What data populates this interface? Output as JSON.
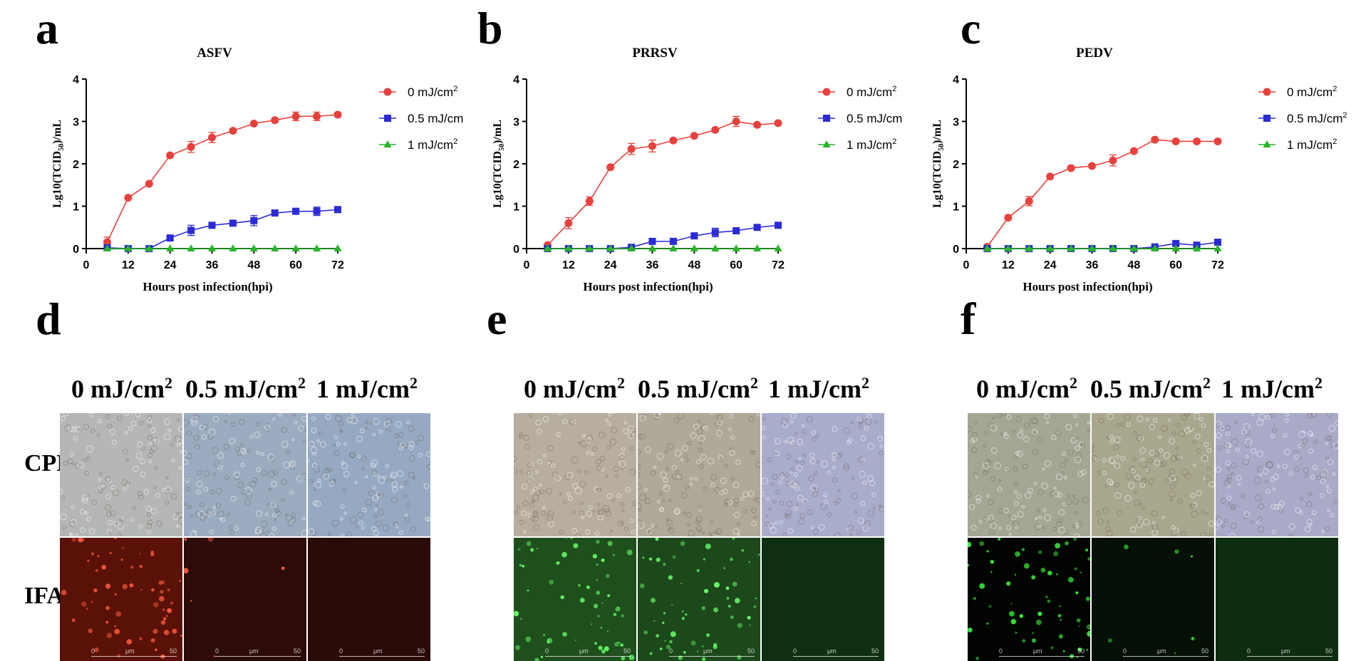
{
  "panel_letters": [
    "a",
    "b",
    "c",
    "d",
    "e",
    "f"
  ],
  "chart_data": [
    {
      "type": "line",
      "title": "ASFV",
      "xlabel": "Hours post infection(hpi)",
      "ylabel": "Lg10(TCID50)/mL",
      "xlim": [
        0,
        72
      ],
      "ylim": [
        0,
        4
      ],
      "xticks": [
        0,
        12,
        24,
        36,
        48,
        60,
        72
      ],
      "yticks": [
        0,
        1,
        2,
        3,
        4
      ],
      "legend_position": "right",
      "x": [
        6,
        12,
        18,
        24,
        30,
        36,
        42,
        48,
        54,
        60,
        66,
        72
      ],
      "series": [
        {
          "name": "0 mJ/cm2",
          "color": "#e8413c",
          "marker": "circle",
          "values": [
            0.15,
            1.2,
            1.53,
            2.2,
            2.4,
            2.62,
            2.78,
            2.95,
            3.03,
            3.12,
            3.12,
            3.16
          ],
          "errors": [
            0.12,
            0.03,
            0.03,
            0.03,
            0.13,
            0.12,
            0.04,
            0.04,
            0.04,
            0.1,
            0.1,
            0.05
          ]
        },
        {
          "name": "0.5 mJ/cm",
          "color": "#2b2bd6",
          "marker": "square",
          "values": [
            0.02,
            0.0,
            0.0,
            0.25,
            0.43,
            0.55,
            0.6,
            0.66,
            0.84,
            0.88,
            0.88,
            0.92
          ],
          "errors": [
            0.03,
            0.02,
            0.02,
            0.05,
            0.12,
            0.05,
            0.05,
            0.12,
            0.06,
            0.06,
            0.1,
            0.06
          ]
        },
        {
          "name": "1 mJ/cm2",
          "color": "#27b427",
          "marker": "triangle",
          "values": [
            0,
            0,
            0,
            0,
            0,
            0,
            0,
            0,
            0,
            0,
            0,
            0
          ],
          "errors": [
            0,
            0,
            0,
            0,
            0,
            0,
            0,
            0,
            0,
            0,
            0,
            0
          ]
        }
      ]
    },
    {
      "type": "line",
      "title": "PRRSV",
      "xlabel": "Hours post infection(hpi)",
      "ylabel": "Lg10(TCID50)/mL",
      "xlim": [
        0,
        72
      ],
      "ylim": [
        0,
        4
      ],
      "xticks": [
        0,
        12,
        24,
        36,
        48,
        60,
        72
      ],
      "yticks": [
        0,
        1,
        2,
        3,
        4
      ],
      "legend_position": "right",
      "x": [
        6,
        12,
        18,
        24,
        30,
        36,
        42,
        48,
        54,
        60,
        66,
        72
      ],
      "series": [
        {
          "name": "0 mJ/cm2",
          "color": "#e8413c",
          "marker": "circle",
          "values": [
            0.08,
            0.6,
            1.12,
            1.92,
            2.35,
            2.42,
            2.55,
            2.66,
            2.8,
            3.0,
            2.92,
            2.96
          ],
          "errors": [
            0.03,
            0.13,
            0.1,
            0.04,
            0.13,
            0.14,
            0.04,
            0.04,
            0.04,
            0.12,
            0.04,
            0.04
          ]
        },
        {
          "name": "0.5 mJ/cm",
          "color": "#2b2bd6",
          "marker": "square",
          "values": [
            0.0,
            0.0,
            0.0,
            0.0,
            0.03,
            0.17,
            0.17,
            0.3,
            0.38,
            0.42,
            0.5,
            0.55
          ],
          "errors": [
            0.02,
            0.02,
            0.02,
            0.02,
            0.03,
            0.05,
            0.05,
            0.06,
            0.1,
            0.06,
            0.05,
            0.05
          ]
        },
        {
          "name": "1 mJ/cm2",
          "color": "#27b427",
          "marker": "triangle",
          "values": [
            0,
            0,
            0,
            0,
            0,
            0,
            0,
            0,
            0,
            0,
            0,
            0
          ],
          "errors": [
            0,
            0,
            0,
            0,
            0,
            0,
            0,
            0,
            0,
            0,
            0,
            0
          ]
        }
      ]
    },
    {
      "type": "line",
      "title": "PEDV",
      "xlabel": "Hours post infection(hpi)",
      "ylabel": "Lg10(TCID50)/mL",
      "xlim": [
        0,
        72
      ],
      "ylim": [
        0,
        4
      ],
      "xticks": [
        0,
        12,
        24,
        36,
        48,
        60,
        72
      ],
      "yticks": [
        0,
        1,
        2,
        3,
        4
      ],
      "legend_position": "right",
      "x": [
        6,
        12,
        18,
        24,
        30,
        36,
        42,
        48,
        54,
        60,
        66,
        72
      ],
      "series": [
        {
          "name": "0 mJ/cm2",
          "color": "#e8413c",
          "marker": "circle",
          "values": [
            0.04,
            0.73,
            1.12,
            1.7,
            1.9,
            1.95,
            2.08,
            2.3,
            2.57,
            2.53,
            2.53,
            2.53
          ],
          "errors": [
            0.02,
            0.04,
            0.11,
            0.04,
            0.04,
            0.04,
            0.13,
            0.04,
            0.04,
            0.04,
            0.04,
            0.04
          ]
        },
        {
          "name": "0.5 mJ/cm2",
          "color": "#2b2bd6",
          "marker": "square",
          "values": [
            0.0,
            0.0,
            0.0,
            0.0,
            0.0,
            0.0,
            0.0,
            0.0,
            0.04,
            0.12,
            0.08,
            0.15
          ],
          "errors": [
            0.02,
            0.02,
            0.02,
            0.02,
            0.02,
            0.02,
            0.02,
            0.02,
            0.03,
            0.04,
            0.03,
            0.05
          ]
        },
        {
          "name": "1 mJ/cm2",
          "color": "#27b427",
          "marker": "triangle",
          "values": [
            0,
            0,
            0,
            0,
            0,
            0,
            0,
            0,
            0,
            0,
            0,
            0
          ],
          "errors": [
            0,
            0,
            0,
            0,
            0,
            0,
            0,
            0,
            0,
            0,
            0,
            0
          ]
        }
      ]
    }
  ],
  "micrographs": {
    "column_labels": [
      "0 mJ/cm",
      "0.5 mJ/cm",
      "1 mJ/cm"
    ],
    "column_label_sup": "2",
    "row_labels": [
      "CPE",
      "IFA"
    ],
    "scale_labels": [
      "0",
      "μm",
      "50"
    ],
    "panels": [
      {
        "cpe_colors": [
          "#b4b7b5",
          "#9cacc0",
          "#97a9c2"
        ],
        "ifa_colors": [
          "#5a1208",
          "#2c0b08",
          "#2a0a08"
        ],
        "ifa_spot_color": "#ff5a3a"
      },
      {
        "cpe_colors": [
          "#b8ae9f",
          "#b0a898",
          "#aaaccc"
        ],
        "ifa_colors": [
          "#1f4f1d",
          "#1c481b",
          "#0f2f12"
        ],
        "ifa_spot_color": "#66ff66"
      },
      {
        "cpe_colors": [
          "#a5a795",
          "#aaa78f",
          "#a8aac8"
        ],
        "ifa_colors": [
          "#020402",
          "#061006",
          "#0e2c10"
        ],
        "ifa_spot_color": "#3cff3c"
      }
    ]
  }
}
